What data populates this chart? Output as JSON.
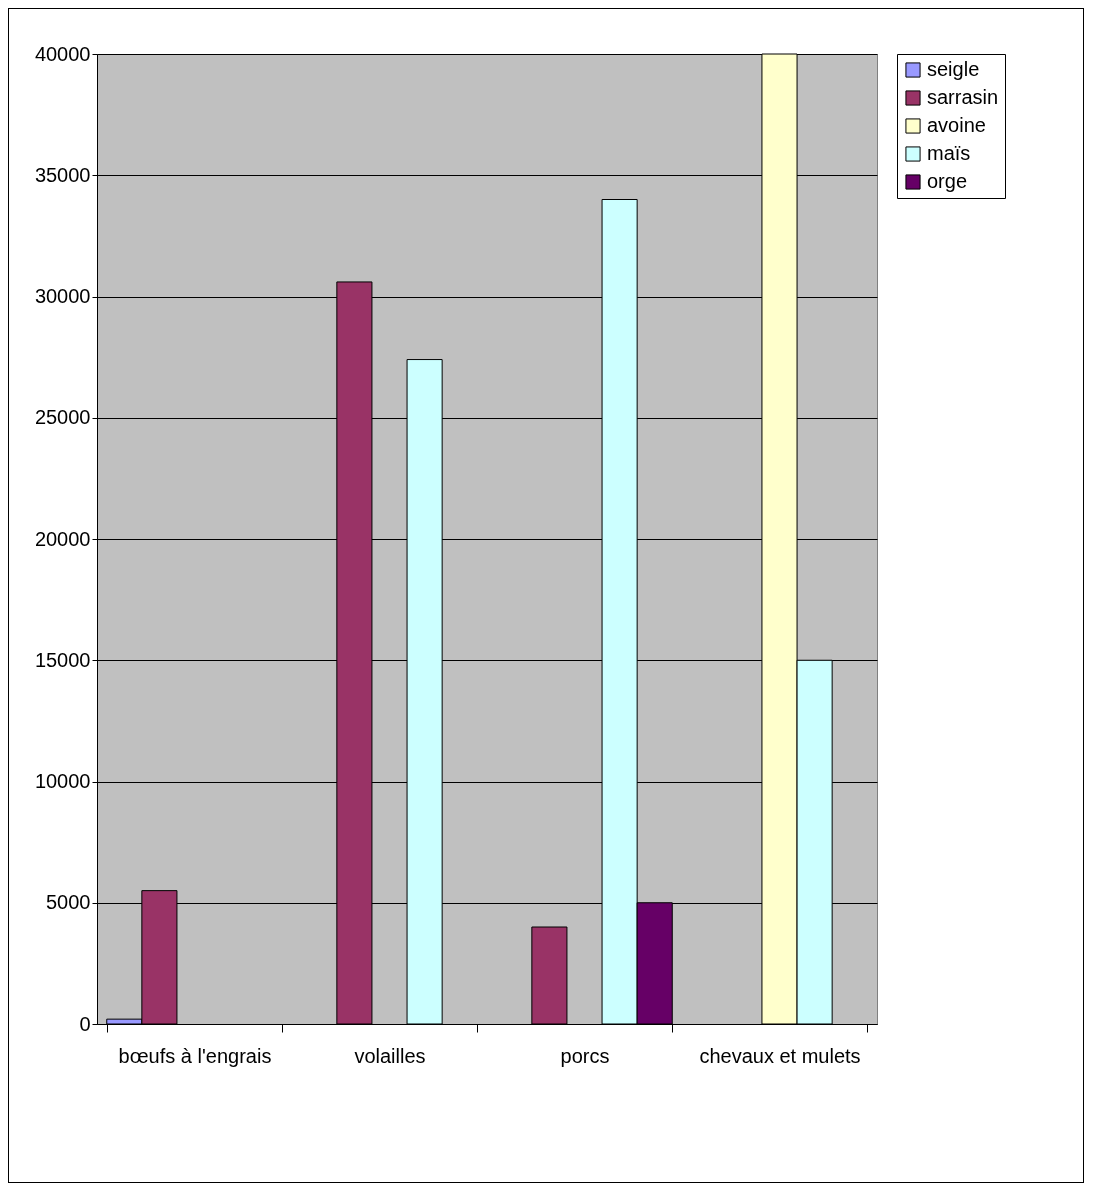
{
  "chart_data": {
    "type": "bar",
    "categories": [
      "bœufs à l'engrais",
      "volailles",
      "porcs",
      "chevaux et mulets"
    ],
    "series": [
      {
        "name": "seigle",
        "color": "#9999ff",
        "values": [
          200,
          null,
          null,
          null
        ]
      },
      {
        "name": "sarrasin",
        "color": "#993366",
        "values": [
          5500,
          30600,
          4000,
          null
        ]
      },
      {
        "name": "avoine",
        "color": "#ffffcc",
        "values": [
          null,
          null,
          null,
          40000
        ]
      },
      {
        "name": "maïs",
        "color": "#ccffff",
        "values": [
          null,
          27400,
          34000,
          15000
        ]
      },
      {
        "name": "orge",
        "color": "#660066",
        "values": [
          null,
          null,
          5000,
          null
        ]
      }
    ],
    "ylim": [
      0,
      40000
    ],
    "yticks": [
      0,
      5000,
      10000,
      15000,
      20000,
      25000,
      30000,
      35000,
      40000
    ],
    "grid": "y",
    "legend": "right"
  }
}
